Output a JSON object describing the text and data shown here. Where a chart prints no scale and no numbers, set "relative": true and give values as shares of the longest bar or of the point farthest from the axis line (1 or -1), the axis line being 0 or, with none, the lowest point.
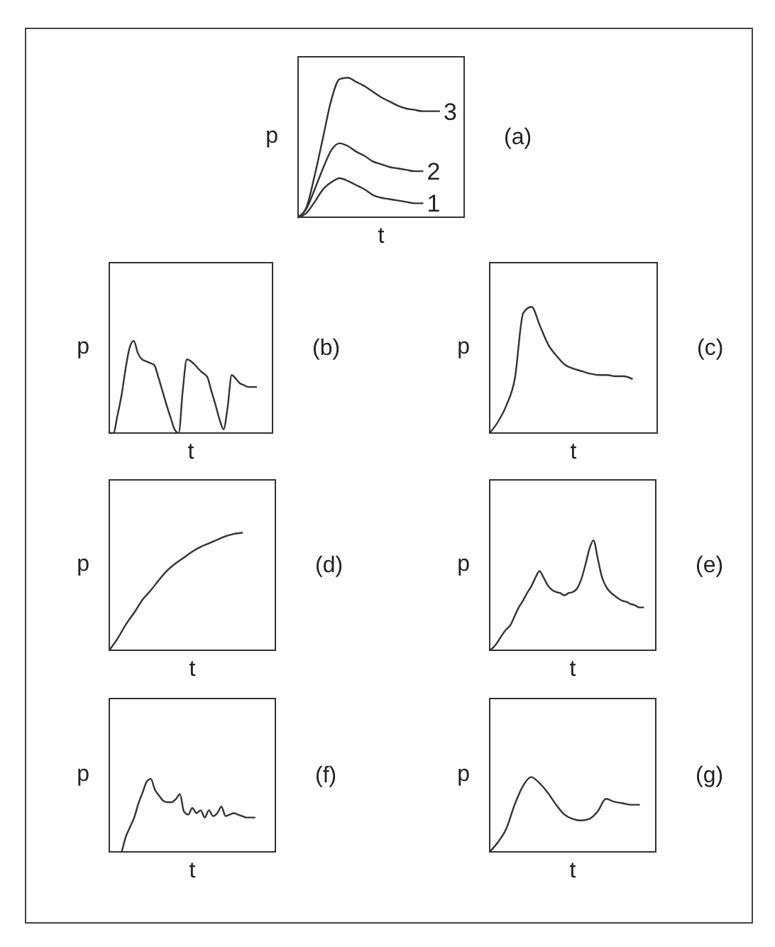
{
  "chart_data": [
    {
      "type": "line",
      "relative": true,
      "xlabel": "t",
      "ylabel": "p",
      "annotations": [
        "(a)"
      ],
      "categories": [
        null,
        null,
        null,
        null,
        null,
        null,
        null,
        null,
        null,
        null,
        null,
        null,
        null,
        null,
        null,
        null,
        null,
        null,
        null,
        null,
        null
      ],
      "series": [
        {
          "name": "3",
          "color": "#333333",
          "values": [
            0,
            0.07,
            0.3,
            0.57,
            0.84,
            0.99,
            1,
            0.97,
            0.94,
            0.9,
            0.86,
            0.83,
            0.8,
            0.78,
            0.77,
            0.76,
            0.76,
            0.76,
            null,
            null,
            null
          ]
        },
        {
          "name": "2",
          "color": "#333333",
          "values": [
            0,
            0.06,
            0.2,
            0.35,
            0.48,
            0.53,
            0.51,
            0.47,
            0.44,
            0.4,
            0.38,
            0.36,
            0.35,
            0.34,
            0.33,
            0.33,
            null,
            null,
            null,
            null,
            null
          ]
        },
        {
          "name": "1",
          "color": "#333333",
          "values": [
            0,
            0.03,
            0.11,
            0.2,
            0.25,
            0.28,
            0.26,
            0.23,
            0.2,
            0.16,
            0.14,
            0.13,
            0.12,
            0.11,
            0.1,
            0.1,
            null,
            null,
            null,
            null,
            null
          ]
        }
      ]
    },
    {
      "type": "line",
      "relative": true,
      "xlabel": "t",
      "ylabel": "p",
      "annotations": [
        "(b)"
      ],
      "categories": [
        null,
        null,
        null,
        null,
        null,
        null,
        null,
        null,
        null,
        null,
        null,
        null,
        null,
        null,
        null,
        null,
        null,
        null,
        null,
        null,
        null,
        null,
        null,
        null,
        null,
        null,
        null,
        null,
        null,
        null,
        null,
        null,
        null,
        null,
        null,
        null,
        null,
        null,
        null,
        null,
        null
      ],
      "series": [
        {
          "color": "#333333",
          "values": [
            0,
            0,
            0.19,
            0.41,
            0.7,
            0.93,
            1,
            0.87,
            0.8,
            0.78,
            0.76,
            0.74,
            0.61,
            0.46,
            0.31,
            0.17,
            0.04,
            0,
            0.46,
            0.8,
            0.78,
            0.74,
            0.69,
            0.65,
            0.61,
            0.46,
            0.31,
            0.15,
            0.04,
            0.28,
            0.63,
            0.59,
            0.54,
            0.52,
            0.5,
            0.5,
            0.5,
            null,
            null,
            null,
            null
          ]
        }
      ]
    },
    {
      "type": "line",
      "relative": true,
      "xlabel": "t",
      "ylabel": "p",
      "annotations": [
        "(c)"
      ],
      "categories": [
        null,
        null,
        null,
        null,
        null,
        null,
        null,
        null,
        null,
        null,
        null,
        null,
        null,
        null,
        null,
        null,
        null,
        null,
        null,
        null,
        null
      ],
      "series": [
        {
          "color": "#333333",
          "values": [
            0,
            0.09,
            0.22,
            0.43,
            0.95,
            1,
            0.85,
            0.7,
            0.61,
            0.54,
            0.51,
            0.49,
            0.47,
            0.46,
            0.46,
            0.45,
            0.45,
            0.43,
            null,
            null,
            null
          ]
        }
      ]
    },
    {
      "type": "line",
      "relative": true,
      "xlabel": "t",
      "ylabel": "p",
      "annotations": [
        "(d)"
      ],
      "categories": [
        null,
        null,
        null,
        null,
        null,
        null,
        null,
        null,
        null,
        null,
        null,
        null,
        null,
        null,
        null,
        null,
        null,
        null,
        null,
        null,
        null
      ],
      "series": [
        {
          "color": "#333333",
          "values": [
            0,
            0.1,
            0.22,
            0.32,
            0.43,
            0.51,
            0.6,
            0.68,
            0.74,
            0.79,
            0.84,
            0.88,
            0.91,
            0.94,
            0.97,
            0.99,
            1,
            null,
            null,
            null,
            null
          ]
        }
      ]
    },
    {
      "type": "line",
      "relative": true,
      "xlabel": "t",
      "ylabel": "p",
      "annotations": [
        "(e)"
      ],
      "categories": [
        null,
        null,
        null,
        null,
        null,
        null,
        null,
        null,
        null,
        null,
        null,
        null,
        null,
        null,
        null,
        null,
        null,
        null,
        null,
        null,
        null,
        null,
        null,
        null,
        null,
        null,
        null,
        null,
        null,
        null,
        null,
        null,
        null,
        null,
        null,
        null,
        null,
        null,
        null,
        null,
        null
      ],
      "series": [
        {
          "color": "#333333",
          "values": [
            0,
            0.03,
            0.08,
            0.14,
            0.19,
            0.23,
            0.31,
            0.39,
            0.45,
            0.52,
            0.58,
            0.66,
            0.72,
            0.66,
            0.59,
            0.55,
            0.53,
            0.52,
            0.5,
            0.52,
            0.53,
            0.56,
            0.64,
            0.77,
            0.92,
            1,
            0.84,
            0.67,
            0.58,
            0.53,
            0.5,
            0.47,
            0.45,
            0.44,
            0.42,
            0.41,
            0.39,
            0.39,
            null,
            null,
            null
          ]
        }
      ]
    },
    {
      "type": "line",
      "relative": true,
      "xlabel": "t",
      "ylabel": "p",
      "annotations": [
        "(f)"
      ],
      "categories": [
        null,
        null,
        null,
        null,
        null,
        null,
        null,
        null,
        null,
        null,
        null,
        null,
        null,
        null,
        null,
        null,
        null,
        null,
        null,
        null,
        null,
        null,
        null,
        null,
        null,
        null,
        null,
        null,
        null,
        null,
        null,
        null,
        null,
        null,
        null,
        null,
        null,
        null,
        null,
        null,
        null
      ],
      "series": [
        {
          "color": "#333333",
          "values": [
            null,
            null,
            null,
            0,
            0.21,
            0.34,
            0.47,
            0.66,
            0.81,
            0.96,
            1,
            0.85,
            0.77,
            0.7,
            0.68,
            0.68,
            0.72,
            0.79,
            0.55,
            0.51,
            0.6,
            0.53,
            0.57,
            0.47,
            0.57,
            0.49,
            0.53,
            0.62,
            0.49,
            0.51,
            0.53,
            0.51,
            0.49,
            0.47,
            0.47,
            0.47,
            null,
            null,
            null,
            null,
            null
          ]
        }
      ]
    },
    {
      "type": "line",
      "relative": true,
      "xlabel": "t",
      "ylabel": "p",
      "annotations": [
        "(g)"
      ],
      "categories": [
        null,
        null,
        null,
        null,
        null,
        null,
        null,
        null,
        null,
        null,
        null,
        null,
        null,
        null,
        null,
        null,
        null,
        null,
        null,
        null,
        null
      ],
      "series": [
        {
          "color": "#333333",
          "values": [
            0,
            0.13,
            0.31,
            0.63,
            0.88,
            1,
            0.92,
            0.79,
            0.63,
            0.5,
            0.44,
            0.42,
            0.44,
            0.54,
            0.71,
            0.67,
            0.65,
            0.63,
            0.63,
            null,
            null
          ]
        }
      ]
    }
  ]
}
